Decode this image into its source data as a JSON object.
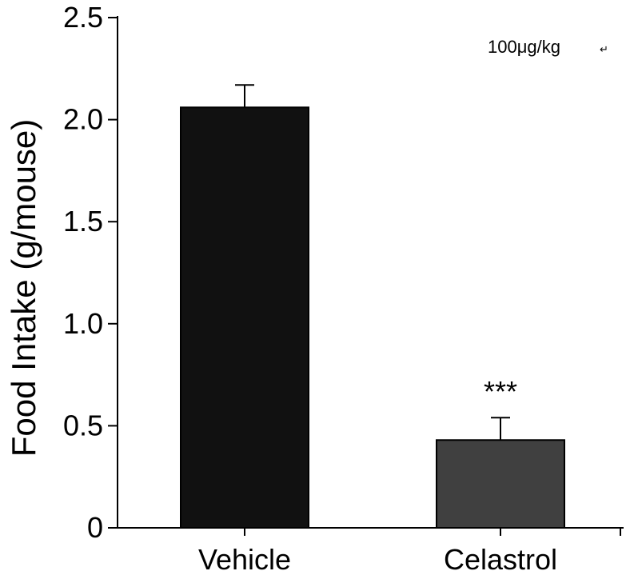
{
  "chart_data": {
    "type": "bar",
    "categories": [
      "Vehicle",
      "Celastrol"
    ],
    "values": [
      2.06,
      0.43
    ],
    "errors": [
      0.11,
      0.11
    ],
    "bar_colors": [
      "#111111",
      "#404040"
    ],
    "xlabel": "",
    "ylabel": "Food Intake (g/mouse)",
    "ylim": [
      0,
      2.5
    ],
    "yticks": [
      0,
      0.5,
      1.0,
      1.5,
      2.0,
      2.5
    ],
    "ytick_labels": [
      "0",
      "0.5",
      "1.0",
      "1.5",
      "2.0",
      "2.5"
    ],
    "annotations": {
      "significance": "***",
      "significance_category": "Celastrol",
      "dose": "100μg/kg",
      "dose_mark": "↵"
    }
  }
}
